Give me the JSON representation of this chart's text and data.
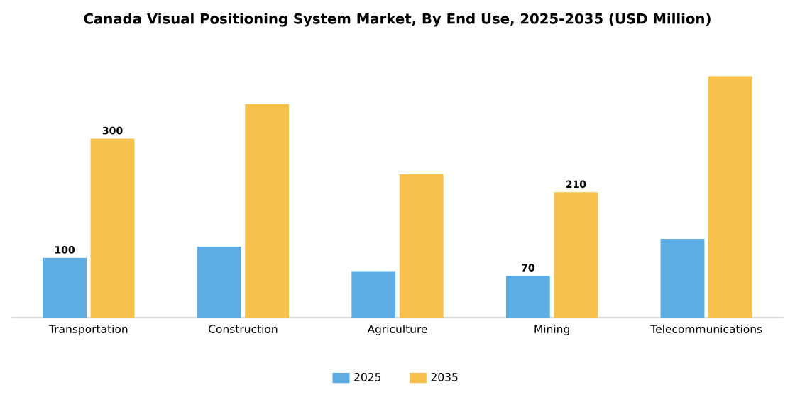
{
  "chart_data": {
    "type": "bar",
    "title": "Canada Visual Positioning System Market, By End Use, 2025-2035 (USD Million)",
    "categories": [
      "Transportation",
      "Construction",
      "Agriculture",
      "Mining",
      "Telecommunications"
    ],
    "series": [
      {
        "name": "2025",
        "color": "#5dade2",
        "values": [
          100,
          119,
          78,
          70,
          132
        ],
        "value_labels": [
          "100",
          null,
          null,
          "70",
          null
        ]
      },
      {
        "name": "2035",
        "color": "#f7c04a",
        "values": [
          300,
          358,
          240,
          210,
          405
        ],
        "value_labels": [
          "300",
          null,
          null,
          "210",
          null
        ]
      }
    ],
    "legend": "bottom"
  }
}
